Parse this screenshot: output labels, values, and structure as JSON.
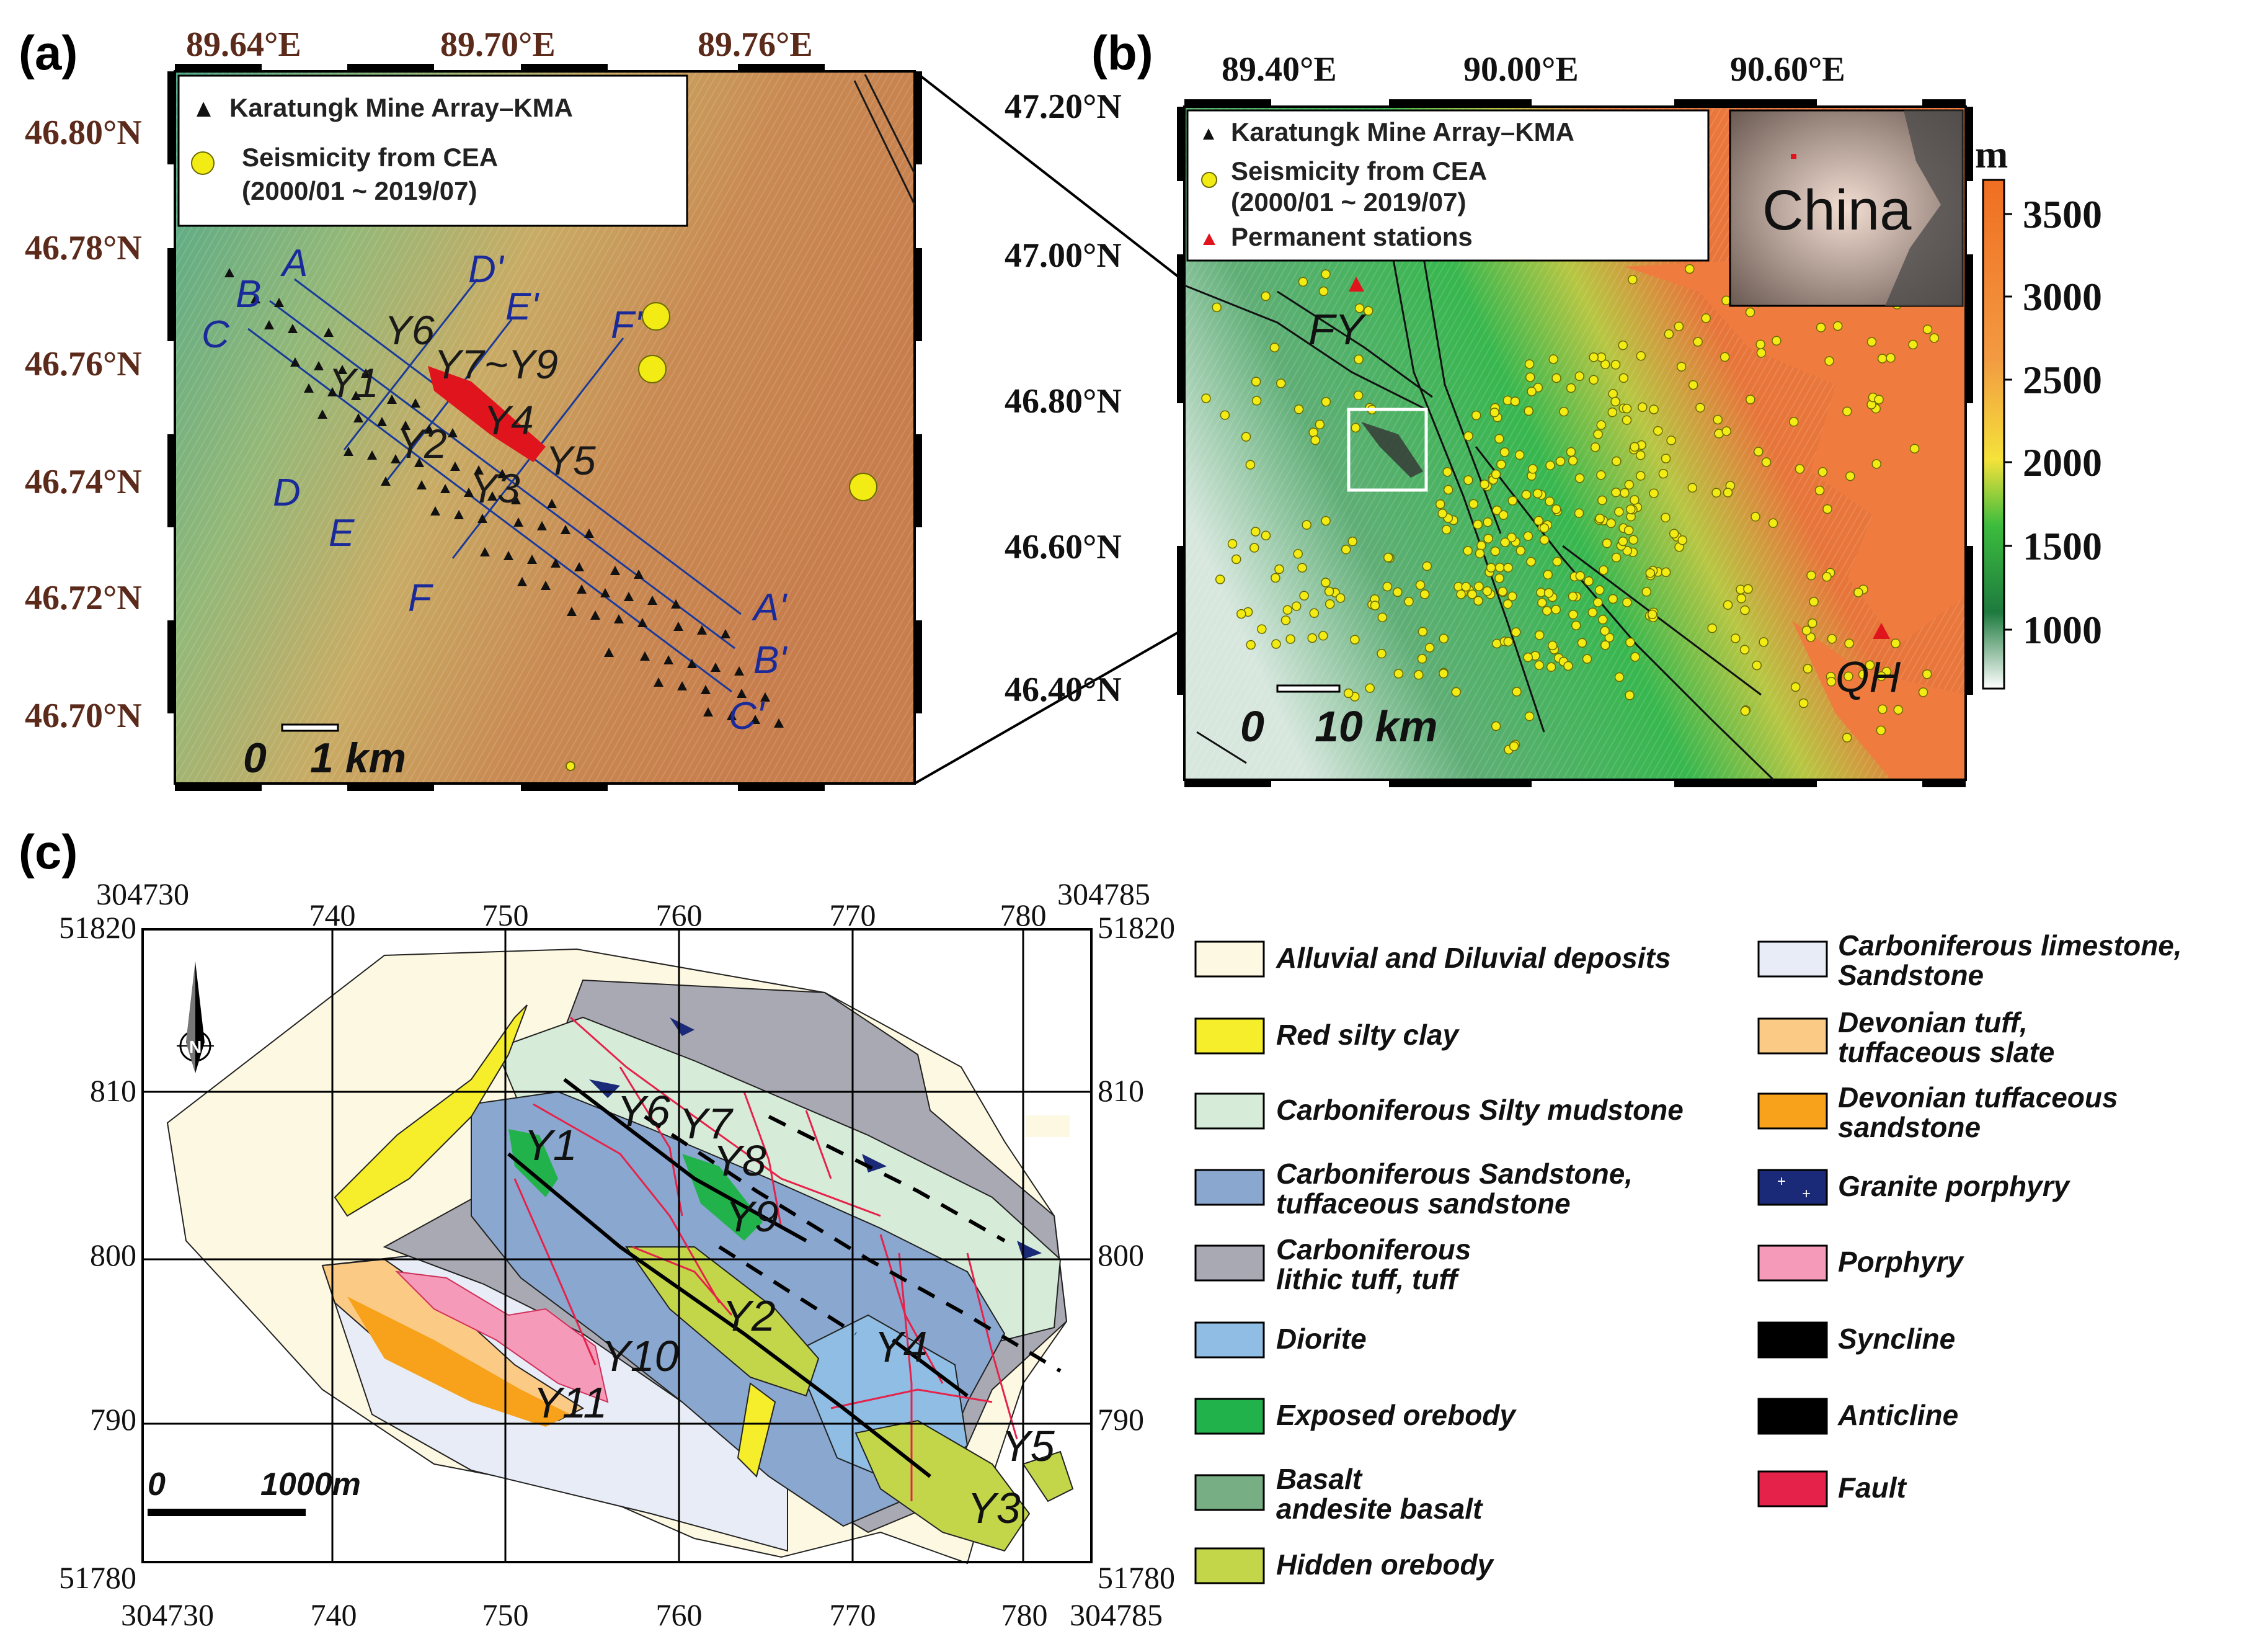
{
  "panel_a": {
    "tag": "(a)",
    "lon_labels": [
      "89.64°E",
      "89.70°E",
      "89.76°E"
    ],
    "lat_labels": [
      "46.80°N",
      "46.78°N",
      "46.76°N",
      "46.74°N",
      "46.72°N",
      "46.70°N"
    ],
    "legend": {
      "array": "Karatungk Mine Array–KMA",
      "seismicity": "Seismicity from CEA",
      "period": "(2000/01 ~ 2019/07)"
    },
    "profiles": [
      "A",
      "B",
      "C",
      "D",
      "E",
      "F",
      "A'",
      "B'",
      "C'",
      "D'",
      "E'",
      "F'"
    ],
    "orebodies": [
      "Y1",
      "Y2",
      "Y3",
      "Y4",
      "Y5",
      "Y6",
      "Y7~Y9"
    ],
    "scale": {
      "zero": "0",
      "label": "1 km"
    }
  },
  "panel_b": {
    "tag": "(b)",
    "lon_labels": [
      "89.40°E",
      "90.00°E",
      "90.60°E"
    ],
    "lat_labels": [
      "47.20°N",
      "47.00°N",
      "46.80°N",
      "46.60°N",
      "46.40°N"
    ],
    "legend": {
      "array": "Karatungk Mine Array–KMA",
      "seismicity": "Seismicity from CEA",
      "period": "(2000/01 ~ 2019/07)",
      "permanent": "Permanent stations"
    },
    "inset_label": "China",
    "stations": [
      "FY",
      "QH"
    ],
    "scale": {
      "zero": "0",
      "label": "10 km"
    },
    "colorbar": {
      "unit": "m",
      "ticks": [
        "3500",
        "3000",
        "2500",
        "2000",
        "1500",
        "1000"
      ]
    }
  },
  "panel_c": {
    "tag": "(c)",
    "x_labels_top": [
      "304730",
      "740",
      "750",
      "760",
      "770",
      "780",
      "304785"
    ],
    "x_labels_bottom": [
      "304730",
      "740",
      "750",
      "760",
      "770",
      "780",
      "304785"
    ],
    "y_labels": [
      "51820",
      "810",
      "800",
      "790",
      "51780"
    ],
    "orebodies": [
      "Y1",
      "Y2",
      "Y3",
      "Y4",
      "Y5",
      "Y6",
      "Y7",
      "Y8",
      "Y9",
      "Y10",
      "Y11"
    ],
    "scale": {
      "zero": "0",
      "label": "1000m"
    },
    "legend_left": [
      {
        "label": "Alluvial and Diluvial deposits",
        "color": "#fdf8e1"
      },
      {
        "label": "Red silty clay",
        "color": "#f6ee2a"
      },
      {
        "label": "Carboniferous Silty mudstone",
        "color": "#d7ebd9"
      },
      {
        "label": "Carboniferous Sandstone, tuffaceous sandstone",
        "color": "#8aa7cf"
      },
      {
        "label": "Carboniferous lithic tuff, tuff",
        "color": "#a9a9b3"
      },
      {
        "label": "Diorite",
        "color": "#8fbde3"
      },
      {
        "label": "Exposed orebody",
        "color": "#22b24b"
      },
      {
        "label": "Basalt andesite basalt",
        "color": "#77ae84"
      },
      {
        "label": "Hidden orebody",
        "color": "#c3d64a"
      }
    ],
    "legend_right": [
      {
        "label": "Carboniferous limestone, Sandstone",
        "color": "#e8ecf6"
      },
      {
        "label": "Devonian tuff, tuffaceous slate",
        "color": "#fbcb85"
      },
      {
        "label": "Devonian tuffaceous sandstone",
        "color": "#f7a21a"
      },
      {
        "label": "Granite porphyry",
        "color": "#1a2a78"
      },
      {
        "label": "Porphyry",
        "color": "#f59ab8"
      },
      {
        "label": "Syncline",
        "color": "#000000"
      },
      {
        "label": "Anticline",
        "color": "#000000"
      },
      {
        "label": "Fault",
        "color": "#e5224a"
      }
    ]
  }
}
